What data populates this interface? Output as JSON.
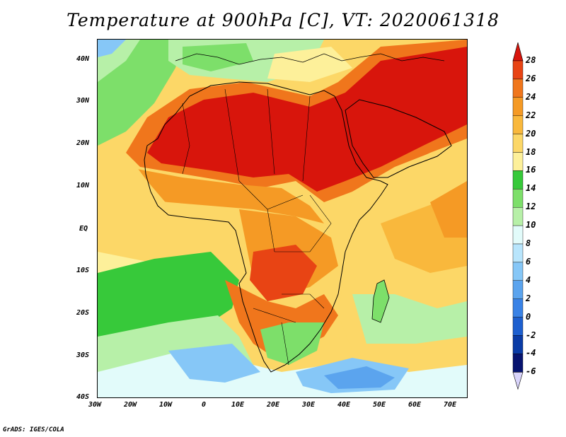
{
  "title": "Temperature at 900hPa [C], VT: 2020061318",
  "credit": "GrADS: IGES/COLA",
  "map": {
    "region": "Africa",
    "lon_range": [
      -30,
      75
    ],
    "lat_range": [
      -40,
      45
    ],
    "lon_ticks": [
      "30W",
      "20W",
      "10W",
      "0",
      "10E",
      "20E",
      "30E",
      "40E",
      "50E",
      "60E",
      "70E"
    ],
    "lat_ticks": [
      "40N",
      "30N",
      "20N",
      "10N",
      "EQ",
      "10S",
      "20S",
      "30S",
      "40S"
    ]
  },
  "colorbar": {
    "labels": [
      "28",
      "26",
      "24",
      "22",
      "20",
      "18",
      "16",
      "14",
      "12",
      "10",
      "8",
      "6",
      "4",
      "2",
      "0",
      "-2",
      "-4",
      "-6"
    ],
    "colors": [
      "#d8150c",
      "#e84414",
      "#f0761c",
      "#f59a25",
      "#f9b83c",
      "#fcd767",
      "#fdf09a",
      "#37c93a",
      "#7ddf6a",
      "#b7f0a8",
      "#e2fbfa",
      "#b8e5fc",
      "#86c7f7",
      "#5ba4ee",
      "#3982e6",
      "#1d5fcf",
      "#0a3ba6",
      "#071470"
    ]
  }
}
